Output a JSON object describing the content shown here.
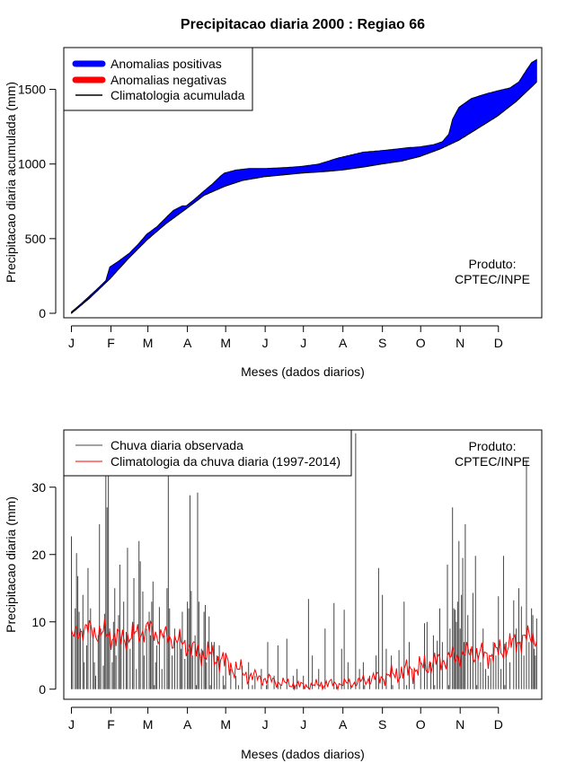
{
  "title": "Precipitacao diaria 2000 : Regiao 66",
  "credit": {
    "line1": "Produto:",
    "line2": "CPTEC/INPE"
  },
  "colors": {
    "positive": "#0000ff",
    "negative": "#ff0000",
    "climatology_top": "#000000",
    "observed": "#444444",
    "climatology_bottom": "#ff0000"
  },
  "chart_data": [
    {
      "type": "area",
      "name": "accumulated",
      "xlabel": "Meses (dados diarios)",
      "ylabel": "Precipitacao diaria acumulada (mm)",
      "xlim": [
        -5,
        370
      ],
      "ylim": [
        -30,
        1780
      ],
      "xticks": [
        {
          "label": "J",
          "day": 1
        },
        {
          "label": "F",
          "day": 32
        },
        {
          "label": "M",
          "day": 61
        },
        {
          "label": "A",
          "day": 92
        },
        {
          "label": "M",
          "day": 122
        },
        {
          "label": "J",
          "day": 153
        },
        {
          "label": "J",
          "day": 183
        },
        {
          "label": "A",
          "day": 214
        },
        {
          "label": "S",
          "day": 245
        },
        {
          "label": "O",
          "day": 275
        },
        {
          "label": "N",
          "day": 306
        },
        {
          "label": "D",
          "day": 336
        }
      ],
      "yticks": [
        0,
        500,
        1000,
        1500
      ],
      "legend": [
        "Anomalias positivas",
        "Anomalias negativas",
        "Climatologia acumulada"
      ],
      "series": [
        {
          "name": "Climatologia acumulada",
          "points": [
            [
              1,
              0
            ],
            [
              15,
              100
            ],
            [
              31,
              230
            ],
            [
              46,
              370
            ],
            [
              60,
              490
            ],
            [
              75,
              600
            ],
            [
              91,
              700
            ],
            [
              105,
              790
            ],
            [
              121,
              850
            ],
            [
              135,
              890
            ],
            [
              152,
              915
            ],
            [
              170,
              930
            ],
            [
              182,
              940
            ],
            [
              200,
              950
            ],
            [
              213,
              960
            ],
            [
              230,
              980
            ],
            [
              244,
              1000
            ],
            [
              260,
              1020
            ],
            [
              274,
              1050
            ],
            [
              290,
              1100
            ],
            [
              305,
              1160
            ],
            [
              320,
              1240
            ],
            [
              335,
              1320
            ],
            [
              350,
              1420
            ],
            [
              366,
              1550
            ]
          ]
        },
        {
          "name": "Observada acumulada",
          "points": [
            [
              1,
              10
            ],
            [
              8,
              60
            ],
            [
              15,
              115
            ],
            [
              22,
              170
            ],
            [
              28,
              220
            ],
            [
              31,
              310
            ],
            [
              38,
              350
            ],
            [
              46,
              400
            ],
            [
              53,
              460
            ],
            [
              60,
              530
            ],
            [
              68,
              580
            ],
            [
              75,
              640
            ],
            [
              81,
              690
            ],
            [
              88,
              720
            ],
            [
              91,
              720
            ],
            [
              97,
              760
            ],
            [
              105,
              820
            ],
            [
              112,
              870
            ],
            [
              118,
              920
            ],
            [
              121,
              940
            ],
            [
              130,
              960
            ],
            [
              140,
              970
            ],
            [
              152,
              970
            ],
            [
              165,
              975
            ],
            [
              175,
              980
            ],
            [
              182,
              985
            ],
            [
              195,
              1000
            ],
            [
              210,
              1040
            ],
            [
              220,
              1060
            ],
            [
              230,
              1080
            ],
            [
              244,
              1090
            ],
            [
              255,
              1100
            ],
            [
              265,
              1110
            ],
            [
              274,
              1115
            ],
            [
              285,
              1130
            ],
            [
              292,
              1150
            ],
            [
              297,
              1200
            ],
            [
              300,
              1300
            ],
            [
              305,
              1380
            ],
            [
              315,
              1440
            ],
            [
              326,
              1470
            ],
            [
              335,
              1490
            ],
            [
              345,
              1510
            ],
            [
              352,
              1550
            ],
            [
              358,
              1630
            ],
            [
              362,
              1680
            ],
            [
              366,
              1700
            ]
          ]
        }
      ]
    },
    {
      "type": "bar",
      "name": "daily",
      "xlabel": "Meses (dados diarios)",
      "ylabel": "Precipitacao diaria (mm)",
      "xlim": [
        -5,
        370
      ],
      "ylim": [
        -1.5,
        38.5
      ],
      "xticks": [
        {
          "label": "J",
          "day": 1
        },
        {
          "label": "F",
          "day": 32
        },
        {
          "label": "M",
          "day": 61
        },
        {
          "label": "A",
          "day": 92
        },
        {
          "label": "M",
          "day": 122
        },
        {
          "label": "J",
          "day": 153
        },
        {
          "label": "J",
          "day": 183
        },
        {
          "label": "A",
          "day": 214
        },
        {
          "label": "S",
          "day": 245
        },
        {
          "label": "O",
          "day": 275
        },
        {
          "label": "N",
          "day": 306
        },
        {
          "label": "D",
          "day": 336
        }
      ],
      "yticks": [
        0,
        10,
        20,
        30
      ],
      "legend": [
        "Chuva diaria observada",
        "Climatologia da chuva diaria (1997-2014)"
      ],
      "observed_bars": [
        [
          1,
          22.7
        ],
        [
          2,
          8
        ],
        [
          4,
          12
        ],
        [
          5,
          20.2
        ],
        [
          6,
          16.8
        ],
        [
          7,
          11.5
        ],
        [
          8,
          9
        ],
        [
          10,
          14
        ],
        [
          11,
          4
        ],
        [
          13,
          6.5
        ],
        [
          14,
          18
        ],
        [
          16,
          12
        ],
        [
          18,
          7.5
        ],
        [
          19,
          4
        ],
        [
          20,
          2
        ],
        [
          22,
          8
        ],
        [
          23,
          24.5
        ],
        [
          24,
          9
        ],
        [
          26,
          3.5
        ],
        [
          27,
          11.2
        ],
        [
          28,
          32
        ],
        [
          29,
          27
        ],
        [
          30,
          38
        ],
        [
          31,
          9
        ],
        [
          33,
          4
        ],
        [
          34,
          10
        ],
        [
          35,
          15
        ],
        [
          36,
          5
        ],
        [
          38,
          11
        ],
        [
          39,
          18.5
        ],
        [
          40,
          7
        ],
        [
          42,
          13
        ],
        [
          44,
          8.5
        ],
        [
          45,
          21
        ],
        [
          47,
          6
        ],
        [
          49,
          10
        ],
        [
          50,
          16.5
        ],
        [
          52,
          3
        ],
        [
          54,
          22
        ],
        [
          55,
          19
        ],
        [
          57,
          14.5
        ],
        [
          58,
          5
        ],
        [
          60,
          9
        ],
        [
          62,
          11.5
        ],
        [
          63,
          8
        ],
        [
          64,
          13
        ],
        [
          65,
          16
        ],
        [
          67,
          4
        ],
        [
          68,
          6.5
        ],
        [
          70,
          12.2
        ],
        [
          72,
          3
        ],
        [
          74,
          8
        ],
        [
          76,
          15
        ],
        [
          77,
          38
        ],
        [
          78,
          12
        ],
        [
          80,
          5
        ],
        [
          82,
          9
        ],
        [
          84,
          7
        ],
        [
          86,
          8.5
        ],
        [
          87,
          6
        ],
        [
          88,
          11.5
        ],
        [
          90,
          4.5
        ],
        [
          92,
          13
        ],
        [
          93,
          12
        ],
        [
          94,
          28.8
        ],
        [
          95,
          14.6
        ],
        [
          96,
          5
        ],
        [
          98,
          8
        ],
        [
          100,
          29.2
        ],
        [
          101,
          13
        ],
        [
          103,
          6
        ],
        [
          105,
          11.5
        ],
        [
          106,
          12.5
        ],
        [
          107,
          4
        ],
        [
          109,
          10.8
        ],
        [
          111,
          7
        ],
        [
          113,
          7
        ],
        [
          115,
          5
        ],
        [
          117,
          6.5
        ],
        [
          120,
          2
        ],
        [
          122,
          5
        ],
        [
          126,
          3
        ],
        [
          130,
          2
        ],
        [
          135,
          3.5
        ],
        [
          140,
          4
        ],
        [
          145,
          2
        ],
        [
          150,
          3
        ],
        [
          155,
          7
        ],
        [
          160,
          2
        ],
        [
          163,
          6.5
        ],
        [
          170,
          7.5
        ],
        [
          175,
          2
        ],
        [
          178,
          3
        ],
        [
          183,
          2
        ],
        [
          187,
          13.4
        ],
        [
          190,
          5
        ],
        [
          195,
          3
        ],
        [
          200,
          9
        ],
        [
          207,
          12.8
        ],
        [
          213,
          6
        ],
        [
          215,
          11.8
        ],
        [
          218,
          4
        ],
        [
          224,
          38
        ],
        [
          227,
          3
        ],
        [
          230,
          4
        ],
        [
          235,
          2
        ],
        [
          240,
          5
        ],
        [
          242,
          18
        ],
        [
          245,
          14
        ],
        [
          248,
          6
        ],
        [
          252,
          5
        ],
        [
          258,
          5.8
        ],
        [
          262,
          13
        ],
        [
          266,
          7
        ],
        [
          270,
          3
        ],
        [
          275,
          4
        ],
        [
          278,
          9.8
        ],
        [
          280,
          10
        ],
        [
          283,
          4
        ],
        [
          285,
          8
        ],
        [
          288,
          7.2
        ],
        [
          290,
          12
        ],
        [
          292,
          7
        ],
        [
          296,
          18.5
        ],
        [
          298,
          9
        ],
        [
          300,
          27
        ],
        [
          301,
          12
        ],
        [
          302,
          11.8
        ],
        [
          303,
          10
        ],
        [
          304,
          13
        ],
        [
          305,
          22
        ],
        [
          306,
          9
        ],
        [
          307,
          14
        ],
        [
          308,
          19.5
        ],
        [
          309,
          7
        ],
        [
          310,
          24.5
        ],
        [
          312,
          11
        ],
        [
          314,
          6
        ],
        [
          316,
          14.3
        ],
        [
          318,
          19.8
        ],
        [
          320,
          5
        ],
        [
          322,
          4
        ],
        [
          324,
          9
        ],
        [
          326,
          3
        ],
        [
          328,
          2
        ],
        [
          330,
          4.6
        ],
        [
          332,
          7
        ],
        [
          334,
          5
        ],
        [
          336,
          13.8
        ],
        [
          338,
          3
        ],
        [
          340,
          19.8
        ],
        [
          342,
          7
        ],
        [
          345,
          4
        ],
        [
          348,
          13.2
        ],
        [
          350,
          9
        ],
        [
          352,
          15
        ],
        [
          354,
          12.3
        ],
        [
          356,
          5
        ],
        [
          358,
          34
        ],
        [
          360,
          7
        ],
        [
          362,
          12
        ],
        [
          363,
          11
        ],
        [
          364,
          6
        ],
        [
          365,
          5
        ],
        [
          366,
          10.5
        ]
      ],
      "climatology_points": [
        [
          1,
          7.5
        ],
        [
          10,
          9
        ],
        [
          20,
          8.5
        ],
        [
          31,
          8
        ],
        [
          40,
          7.5
        ],
        [
          50,
          8
        ],
        [
          61,
          9
        ],
        [
          70,
          8
        ],
        [
          80,
          7.5
        ],
        [
          92,
          6.5
        ],
        [
          100,
          5.5
        ],
        [
          110,
          5
        ],
        [
          122,
          4
        ],
        [
          130,
          3
        ],
        [
          140,
          2
        ],
        [
          153,
          1.5
        ],
        [
          160,
          1.2
        ],
        [
          170,
          0.8
        ],
        [
          183,
          0.5
        ],
        [
          190,
          0.5
        ],
        [
          200,
          0.8
        ],
        [
          214,
          0.8
        ],
        [
          225,
          1
        ],
        [
          235,
          1.5
        ],
        [
          245,
          1.8
        ],
        [
          255,
          2.2
        ],
        [
          265,
          2.8
        ],
        [
          275,
          3.2
        ],
        [
          285,
          3.8
        ],
        [
          295,
          4.5
        ],
        [
          306,
          5
        ],
        [
          315,
          5.5
        ],
        [
          325,
          5
        ],
        [
          336,
          5.5
        ],
        [
          345,
          6.5
        ],
        [
          355,
          7.5
        ],
        [
          366,
          7.8
        ]
      ]
    }
  ]
}
